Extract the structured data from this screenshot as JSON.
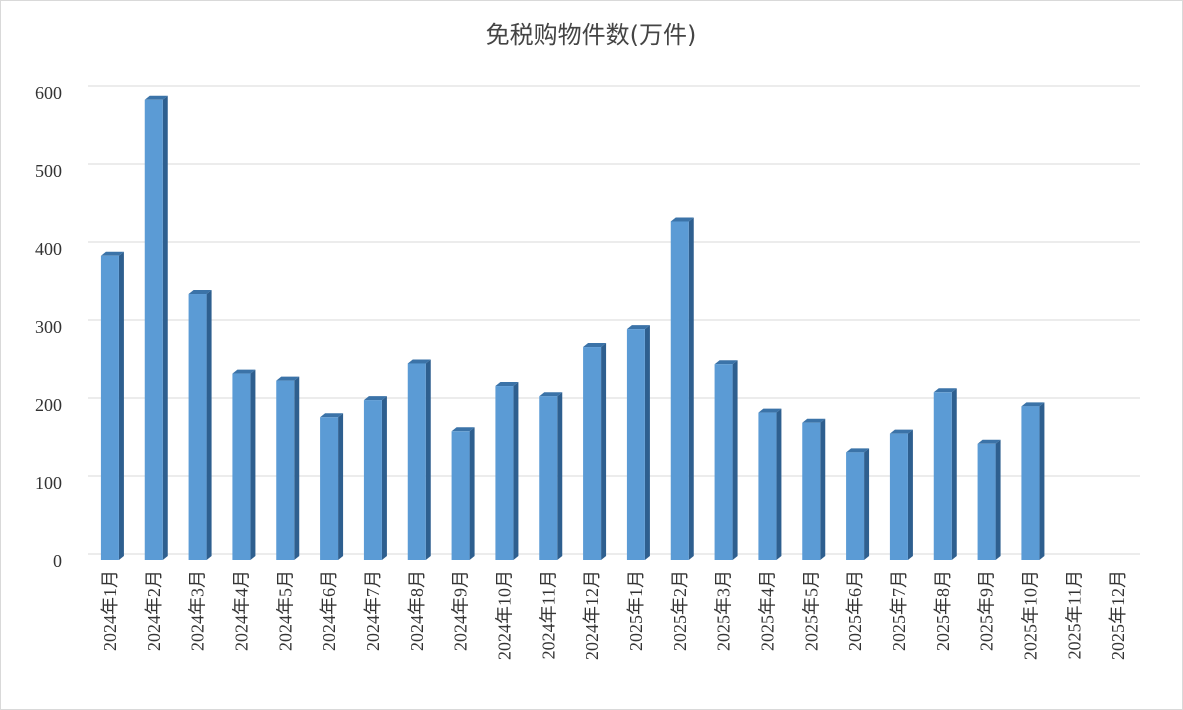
{
  "chart_data": {
    "type": "bar",
    "title": "免税购物件数(万件)",
    "categories": [
      "2024年1月",
      "2024年2月",
      "2024年3月",
      "2024年4月",
      "2024年5月",
      "2024年6月",
      "2024年7月",
      "2024年8月",
      "2024年9月",
      "2024年10月",
      "2024年11月",
      "2024年12月",
      "2025年1月",
      "2025年2月",
      "2025年3月",
      "2025年4月",
      "2025年5月",
      "2025年6月",
      "2025年7月",
      "2025年8月",
      "2025年9月",
      "2025年10月",
      "2025年11月",
      "2025年12月"
    ],
    "values": [
      390,
      590,
      341,
      239,
      230,
      183,
      205,
      252,
      165,
      223,
      210,
      273,
      296,
      434,
      251,
      189,
      176,
      138,
      162,
      215,
      149,
      197,
      null,
      null
    ],
    "color": "#5b9bd5",
    "ylim": [
      0,
      600
    ],
    "yticks": [
      0,
      100,
      200,
      300,
      400,
      500,
      600
    ],
    "grid": true
  }
}
